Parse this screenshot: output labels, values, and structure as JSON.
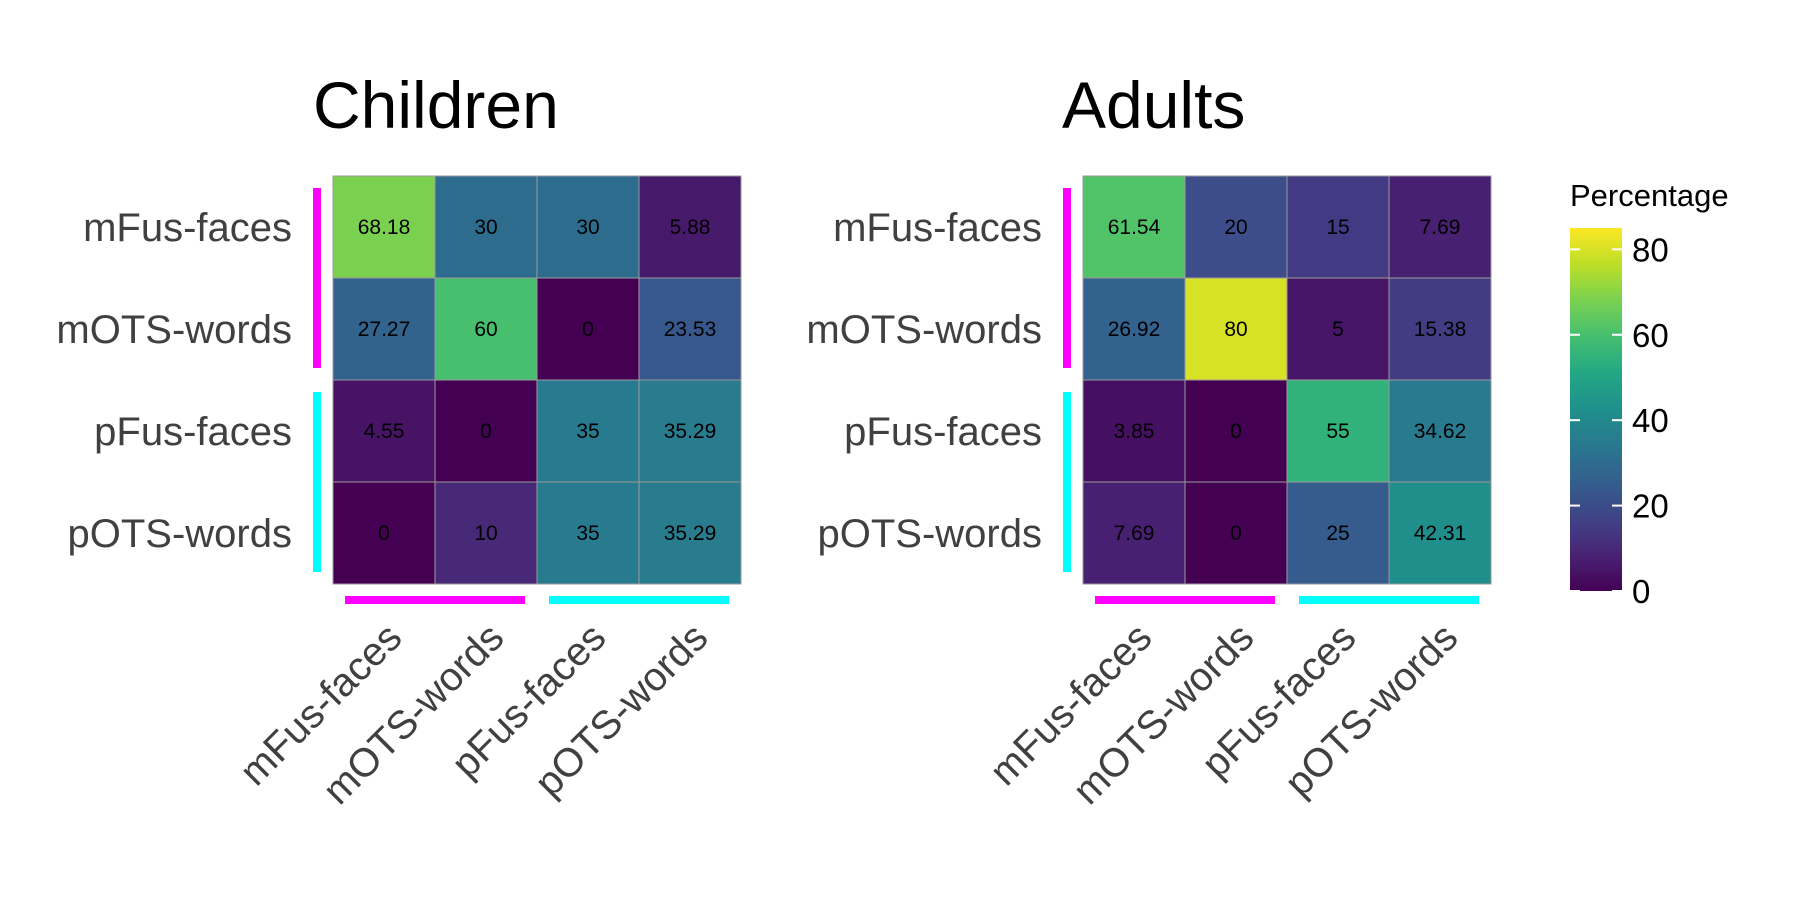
{
  "chart_data": [
    {
      "type": "heatmap",
      "title": "Children",
      "rows": [
        "mFus-faces",
        "mOTS-words",
        "pFus-faces",
        "pOTS-words"
      ],
      "cols": [
        "mFus-faces",
        "mOTS-words",
        "pFus-faces",
        "pOTS-words"
      ],
      "values": [
        [
          68.18,
          30,
          30,
          5.88
        ],
        [
          27.27,
          60,
          0,
          23.53
        ],
        [
          4.55,
          0,
          35,
          35.29
        ],
        [
          0,
          10,
          35,
          35.29
        ]
      ],
      "row_groups": [
        {
          "rows": [
            0,
            1
          ],
          "color": "#FF00FF"
        },
        {
          "rows": [
            2,
            3
          ],
          "color": "#00FFFF"
        }
      ],
      "col_groups": [
        {
          "cols": [
            0,
            1
          ],
          "color": "#FF00FF"
        },
        {
          "cols": [
            2,
            3
          ],
          "color": "#00FFFF"
        }
      ]
    },
    {
      "type": "heatmap",
      "title": "Adults",
      "rows": [
        "mFus-faces",
        "mOTS-words",
        "pFus-faces",
        "pOTS-words"
      ],
      "cols": [
        "mFus-faces",
        "mOTS-words",
        "pFus-faces",
        "pOTS-words"
      ],
      "values": [
        [
          61.54,
          20,
          15,
          7.69
        ],
        [
          26.92,
          80,
          5,
          15.38
        ],
        [
          3.85,
          0,
          55,
          34.62
        ],
        [
          7.69,
          0,
          25,
          42.31
        ]
      ],
      "row_groups": [
        {
          "rows": [
            0,
            1
          ],
          "color": "#FF00FF"
        },
        {
          "rows": [
            2,
            3
          ],
          "color": "#00FFFF"
        }
      ],
      "col_groups": [
        {
          "cols": [
            0,
            1
          ],
          "color": "#FF00FF"
        },
        {
          "cols": [
            2,
            3
          ],
          "color": "#00FFFF"
        }
      ]
    }
  ],
  "legend": {
    "title": "Percentage",
    "colormap": "viridis",
    "range": [
      0,
      85
    ],
    "ticks": [
      0,
      20,
      40,
      60,
      80
    ]
  }
}
